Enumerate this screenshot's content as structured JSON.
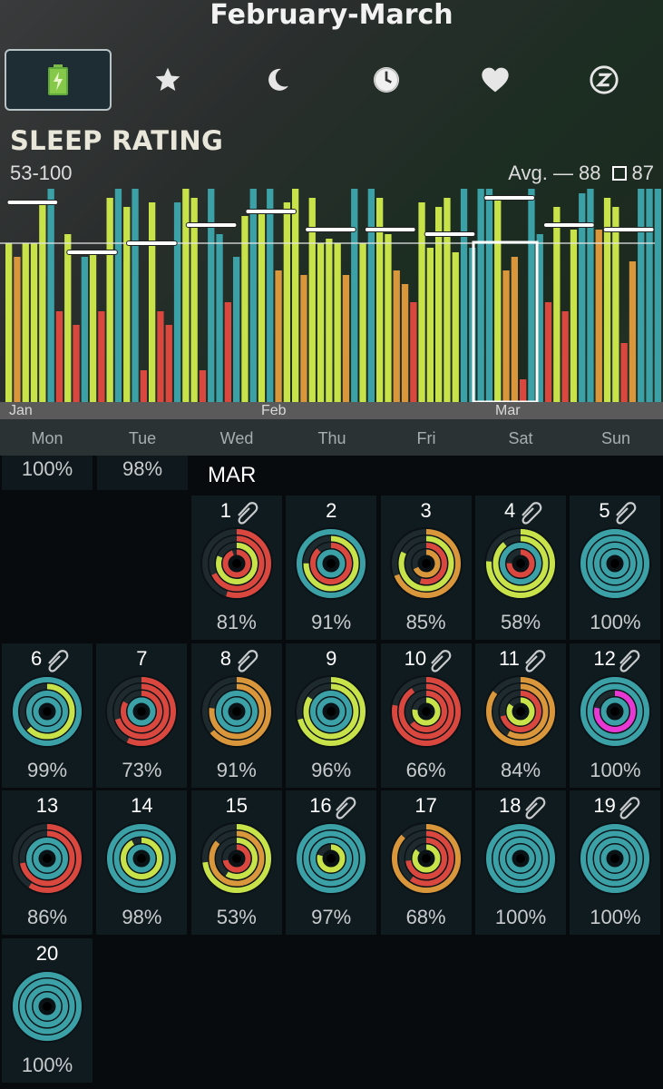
{
  "header": {
    "title": "February-March"
  },
  "tabs": [
    {
      "icon": "battery-icon",
      "active": true
    },
    {
      "icon": "star-icon"
    },
    {
      "icon": "moon-icon"
    },
    {
      "icon": "clock-icon"
    },
    {
      "icon": "heart-icon"
    },
    {
      "icon": "sleep-z-icon"
    }
  ],
  "section": {
    "title": "SLEEP RATING",
    "range": "53-100",
    "avg_label": "Avg. —",
    "avg_value": "88",
    "box_value": "87"
  },
  "colors": {
    "teal": "#3ba1a7",
    "lime": "#c8e34a",
    "orange": "#d9963a",
    "red": "#d9473f",
    "magenta": "#e838d4"
  },
  "chart_data": {
    "type": "bar",
    "range": [
      53,
      100
    ],
    "avg": 88,
    "months": [
      "Jan",
      "Feb",
      "Mar"
    ],
    "bars": [
      {
        "v": 88,
        "c": "lime"
      },
      {
        "v": 85,
        "c": "orange"
      },
      {
        "v": 88,
        "c": "lime"
      },
      {
        "v": 88,
        "c": "lime"
      },
      {
        "v": 97,
        "c": "lime"
      },
      {
        "v": 100,
        "c": "teal"
      },
      {
        "v": 73,
        "c": "red"
      },
      {
        "v": 90,
        "c": "lime"
      },
      {
        "v": 70,
        "c": "red"
      },
      {
        "v": 85,
        "c": "teal"
      },
      {
        "v": 86,
        "c": "lime"
      },
      {
        "v": 73,
        "c": "red"
      },
      {
        "v": 98,
        "c": "lime"
      },
      {
        "v": 100,
        "c": "teal"
      },
      {
        "v": 96,
        "c": "lime"
      },
      {
        "v": 100,
        "c": "teal"
      },
      {
        "v": 60,
        "c": "red"
      },
      {
        "v": 97,
        "c": "lime"
      },
      {
        "v": 73,
        "c": "red"
      },
      {
        "v": 70,
        "c": "red"
      },
      {
        "v": 97,
        "c": "teal"
      },
      {
        "v": 100,
        "c": "lime"
      },
      {
        "v": 98,
        "c": "lime"
      },
      {
        "v": 60,
        "c": "red"
      },
      {
        "v": 100,
        "c": "teal"
      },
      {
        "v": 90,
        "c": "teal"
      },
      {
        "v": 75,
        "c": "red"
      },
      {
        "v": 85,
        "c": "teal"
      },
      {
        "v": 94,
        "c": "lime"
      },
      {
        "v": 100,
        "c": "teal"
      },
      {
        "v": 95,
        "c": "lime"
      },
      {
        "v": 100,
        "c": "teal"
      },
      {
        "v": 82,
        "c": "orange"
      },
      {
        "v": 97,
        "c": "lime"
      },
      {
        "v": 100,
        "c": "lime"
      },
      {
        "v": 81,
        "c": "orange"
      },
      {
        "v": 98,
        "c": "lime"
      },
      {
        "v": 88,
        "c": "lime"
      },
      {
        "v": 89,
        "c": "lime"
      },
      {
        "v": 88,
        "c": "lime"
      },
      {
        "v": 81,
        "c": "orange"
      },
      {
        "v": 100,
        "c": "teal"
      },
      {
        "v": 88,
        "c": "lime"
      },
      {
        "v": 100,
        "c": "teal"
      },
      {
        "v": 98,
        "c": "lime"
      },
      {
        "v": 90,
        "c": "lime"
      },
      {
        "v": 82,
        "c": "orange"
      },
      {
        "v": 79,
        "c": "orange"
      },
      {
        "v": 75,
        "c": "red"
      },
      {
        "v": 97,
        "c": "lime"
      },
      {
        "v": 87,
        "c": "lime"
      },
      {
        "v": 96,
        "c": "lime"
      },
      {
        "v": 98,
        "c": "lime"
      },
      {
        "v": 86,
        "c": "lime"
      },
      {
        "v": 100,
        "c": "teal"
      },
      {
        "v": 87,
        "c": "teal"
      },
      {
        "v": 100,
        "c": "teal"
      },
      {
        "v": 100,
        "c": "teal"
      },
      {
        "v": 98,
        "c": "lime"
      },
      {
        "v": 82,
        "c": "orange"
      },
      {
        "v": 85,
        "c": "orange"
      },
      {
        "v": 58,
        "c": "red"
      },
      {
        "v": 100,
        "c": "teal"
      },
      {
        "v": 90,
        "c": "teal"
      },
      {
        "v": 75,
        "c": "red"
      },
      {
        "v": 96,
        "c": "lime"
      },
      {
        "v": 73,
        "c": "red"
      },
      {
        "v": 91,
        "c": "lime"
      },
      {
        "v": 99,
        "c": "teal"
      },
      {
        "v": 100,
        "c": "teal"
      },
      {
        "v": 91,
        "c": "orange"
      },
      {
        "v": 98,
        "c": "lime"
      },
      {
        "v": 96,
        "c": "lime"
      },
      {
        "v": 66,
        "c": "red"
      },
      {
        "v": 84,
        "c": "orange"
      },
      {
        "v": 100,
        "c": "teal"
      },
      {
        "v": 100,
        "c": "teal"
      },
      {
        "v": 100,
        "c": "teal"
      }
    ],
    "week_avgs": [
      97,
      86,
      88,
      92,
      95,
      91,
      91,
      90,
      98,
      92,
      91
    ]
  },
  "weekdays": [
    "Mon",
    "Tue",
    "Wed",
    "Thu",
    "Fri",
    "Sat",
    "Sun"
  ],
  "calendar": {
    "month": "MAR",
    "prev_pcts": [
      "100%",
      "98%"
    ],
    "days": [
      {
        "d": "1",
        "p": "81%",
        "clip": true,
        "r": [
          "red",
          "red",
          "lime",
          "red"
        ]
      },
      {
        "d": "2",
        "p": "91%",
        "clip": false,
        "r": [
          "teal",
          "lime",
          "red",
          "teal"
        ]
      },
      {
        "d": "3",
        "p": "85%",
        "clip": false,
        "r": [
          "orange",
          "lime",
          "red",
          "orange"
        ]
      },
      {
        "d": "4",
        "p": "58%",
        "clip": true,
        "r": [
          "lime",
          "lime",
          "teal",
          "red"
        ]
      },
      {
        "d": "5",
        "p": "100%",
        "clip": true,
        "r": [
          "teal",
          "teal",
          "teal",
          "teal"
        ]
      },
      {
        "d": "6",
        "p": "99%",
        "clip": true,
        "r": [
          "teal",
          "lime",
          "teal",
          "teal"
        ]
      },
      {
        "d": "7",
        "p": "73%",
        "clip": false,
        "r": [
          "red",
          "red",
          "red",
          "teal"
        ]
      },
      {
        "d": "8",
        "p": "91%",
        "clip": true,
        "r": [
          "orange",
          "orange",
          "teal",
          "teal"
        ]
      },
      {
        "d": "9",
        "p": "96%",
        "clip": false,
        "r": [
          "lime",
          "lime",
          "teal",
          "teal"
        ]
      },
      {
        "d": "10",
        "p": "66%",
        "clip": true,
        "r": [
          "red",
          "red",
          "red",
          "lime"
        ]
      },
      {
        "d": "11",
        "p": "84%",
        "clip": true,
        "r": [
          "orange",
          "orange",
          "red",
          "lime"
        ]
      },
      {
        "d": "12",
        "p": "100%",
        "clip": true,
        "r": [
          "teal",
          "teal",
          "magenta",
          "teal"
        ]
      },
      {
        "d": "13",
        "p": "86%",
        "clip": false,
        "r": [
          "red",
          "red",
          "teal",
          "teal"
        ]
      },
      {
        "d": "14",
        "p": "98%",
        "clip": false,
        "r": [
          "teal",
          "teal",
          "lime",
          "teal"
        ]
      },
      {
        "d": "15",
        "p": "53%",
        "clip": false,
        "r": [
          "lime",
          "orange",
          "lime",
          "red"
        ]
      },
      {
        "d": "16",
        "p": "97%",
        "clip": true,
        "r": [
          "teal",
          "teal",
          "teal",
          "lime"
        ]
      },
      {
        "d": "17",
        "p": "68%",
        "clip": false,
        "r": [
          "orange",
          "red",
          "red",
          "lime"
        ]
      },
      {
        "d": "18",
        "p": "100%",
        "clip": true,
        "r": [
          "teal",
          "teal",
          "teal",
          "teal"
        ]
      },
      {
        "d": "19",
        "p": "100%",
        "clip": true,
        "r": [
          "teal",
          "teal",
          "teal",
          "teal"
        ]
      },
      {
        "d": "20",
        "p": "100%",
        "clip": false,
        "r": [
          "teal",
          "teal",
          "teal",
          "teal"
        ]
      }
    ]
  }
}
